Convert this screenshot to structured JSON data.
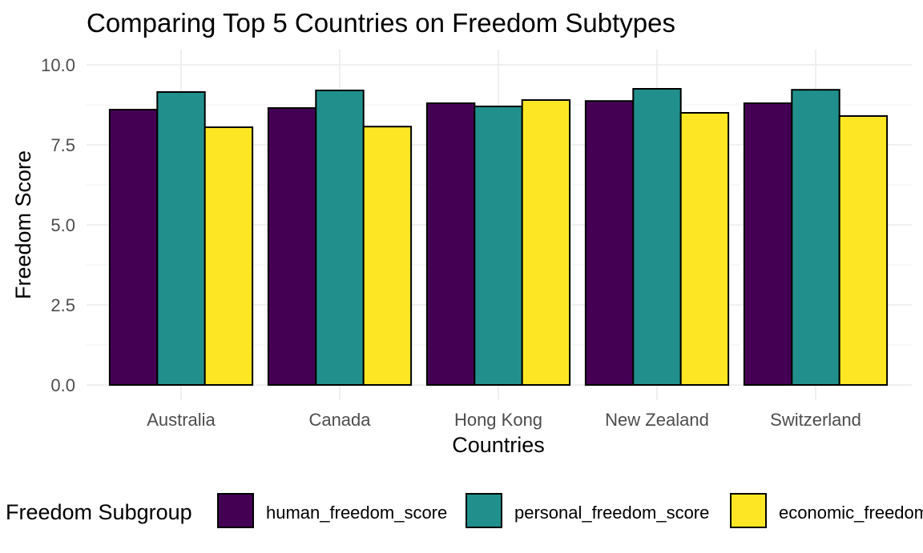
{
  "chart_data": {
    "type": "bar",
    "title": "Comparing Top 5 Countries on Freedom Subtypes",
    "xlabel": "Countries",
    "ylabel": "Freedom Score",
    "ylim": [
      0,
      10
    ],
    "yticks": [
      "0.0",
      "2.5",
      "5.0",
      "7.5",
      "10.0"
    ],
    "grid": true,
    "categories": [
      "Australia",
      "Canada",
      "Hong Kong",
      "New Zealand",
      "Switzerland"
    ],
    "series": [
      {
        "name": "human_freedom_score",
        "color": "#440154",
        "values": [
          8.6,
          8.65,
          8.8,
          8.87,
          8.8
        ]
      },
      {
        "name": "personal_freedom_score",
        "color": "#21908C",
        "values": [
          9.15,
          9.2,
          8.7,
          9.25,
          9.22
        ]
      },
      {
        "name": "economic_freedom_score",
        "color": "#FDE725",
        "values": [
          8.05,
          8.07,
          8.9,
          8.5,
          8.4
        ]
      }
    ],
    "legend": {
      "title": "Freedom Subgroup",
      "placement": "bottom"
    }
  }
}
